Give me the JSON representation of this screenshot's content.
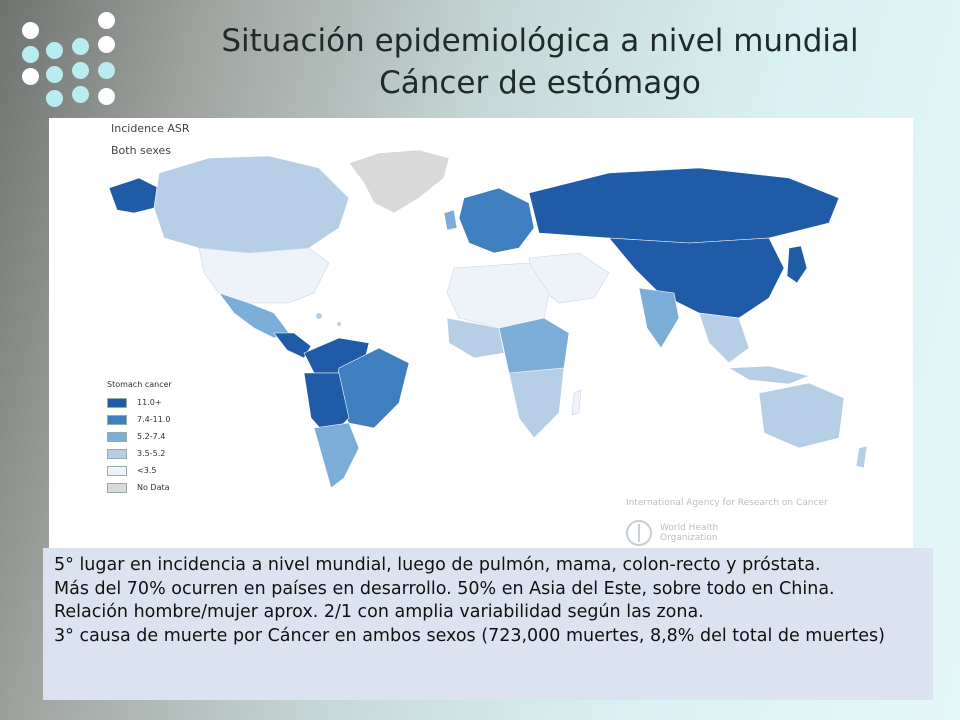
{
  "header": {
    "title_line1": "Situación epidemiológica a nivel  mundial",
    "title_line2": "Cáncer de estómago"
  },
  "map": {
    "label_measure": "Incidence ASR",
    "label_sex": "Both sexes",
    "legend": {
      "title": "Stomach cancer",
      "items": [
        {
          "label": "11.0+",
          "color": "#1f5ba6"
        },
        {
          "label": "7.4-11.0",
          "color": "#3f7fc0"
        },
        {
          "label": "5.2-7.4",
          "color": "#7aaed8"
        },
        {
          "label": "3.5-5.2",
          "color": "#b6cfe6"
        },
        {
          "label": "<3.5",
          "color": "#eef3fa"
        },
        {
          "label": "No Data",
          "color": "#d9d9d9"
        }
      ]
    },
    "credit_agency": "International Agency for Research on Cancer",
    "credit_org_line1": "World Health",
    "credit_org_line2": "Organization"
  },
  "body_text": {
    "line1": "5° lugar en incidencia a nivel mundial, luego de pulmón, mama, colon-recto y próstata.",
    "line2": "Más del 70% ocurren en países en desarrollo. 50% en Asia del Este, sobre todo en China.",
    "line3": "Relación hombre/mujer aprox. 2/1 con amplia variabilidad según las zona.",
    "line4": "3° causa de muerte por Cáncer en ambos sexos (723,000 muertes, 8,8% del total de muertes)"
  }
}
